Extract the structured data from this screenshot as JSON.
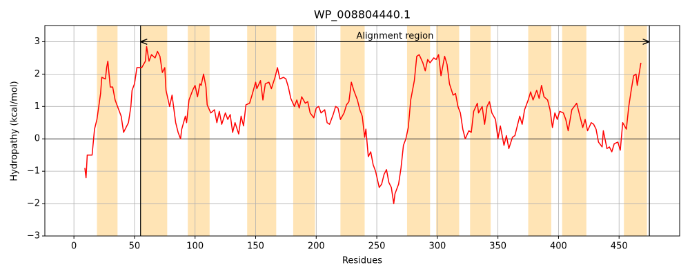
{
  "chart_data": {
    "type": "line",
    "title": "WP_008804440.1",
    "xlabel": "Residues",
    "ylabel": "Hydropathy (kcal/mol)",
    "x": [
      9,
      10,
      11,
      15,
      17,
      19,
      22,
      23,
      26,
      27,
      28,
      30,
      32,
      34,
      36,
      39,
      41,
      43,
      45,
      47,
      48,
      50,
      52,
      55,
      56,
      59,
      60,
      62,
      64,
      67,
      69,
      71,
      73,
      75,
      76,
      79,
      81,
      84,
      86,
      88,
      89,
      92,
      93,
      95,
      98,
      100,
      102,
      104,
      105,
      107,
      109,
      110,
      113,
      116,
      118,
      120,
      122,
      125,
      127,
      129,
      131,
      133,
      136,
      138,
      140,
      142,
      145,
      147,
      150,
      151,
      154,
      156,
      158,
      161,
      163,
      166,
      168,
      170,
      173,
      175,
      177,
      179,
      182,
      184,
      186,
      188,
      191,
      193,
      195,
      198,
      200,
      202,
      204,
      207,
      209,
      211,
      214,
      216,
      218,
      220,
      223,
      225,
      227,
      229,
      231,
      234,
      236,
      238,
      240,
      241,
      243,
      245,
      247,
      249,
      252,
      254,
      256,
      258,
      260,
      262,
      264,
      265,
      268,
      270,
      272,
      274,
      276,
      278,
      281,
      283,
      285,
      288,
      290,
      292,
      294,
      297,
      299,
      301,
      303,
      306,
      308,
      310,
      313,
      315,
      317,
      319,
      321,
      323,
      326,
      328,
      330,
      333,
      334,
      337,
      339,
      341,
      343,
      345,
      348,
      350,
      352,
      355,
      357,
      359,
      362,
      364,
      366,
      368,
      370,
      372,
      375,
      377,
      379,
      382,
      384,
      386,
      388,
      391,
      393,
      395,
      397,
      399,
      401,
      404,
      406,
      408,
      411,
      413,
      415,
      417,
      420,
      422,
      424,
      427,
      429,
      431,
      433,
      436,
      437,
      440,
      442,
      444,
      446,
      449,
      451,
      453,
      456,
      458,
      460,
      462,
      464,
      465,
      468
    ],
    "values": [
      -0.9,
      -1.2,
      -0.5,
      -0.5,
      0.3,
      0.6,
      1.4,
      1.9,
      1.85,
      2.2,
      2.4,
      1.6,
      1.6,
      1.2,
      1.0,
      0.7,
      0.2,
      0.35,
      0.5,
      1.0,
      1.5,
      1.7,
      2.2,
      2.2,
      2.2,
      2.4,
      2.85,
      2.4,
      2.6,
      2.5,
      2.7,
      2.55,
      2.05,
      2.2,
      1.5,
      1.0,
      1.35,
      0.5,
      0.2,
      0.0,
      0.3,
      0.7,
      0.5,
      1.2,
      1.5,
      1.65,
      1.3,
      1.7,
      1.65,
      2.0,
      1.6,
      1.05,
      0.8,
      0.9,
      0.5,
      0.85,
      0.45,
      0.8,
      0.6,
      0.75,
      0.2,
      0.5,
      0.15,
      0.7,
      0.4,
      1.05,
      1.1,
      1.35,
      1.75,
      1.55,
      1.8,
      1.2,
      1.7,
      1.75,
      1.55,
      1.9,
      2.2,
      1.85,
      1.9,
      1.85,
      1.6,
      1.25,
      1.0,
      1.2,
      0.95,
      1.3,
      1.1,
      1.15,
      0.8,
      0.65,
      0.95,
      1.0,
      0.8,
      0.9,
      0.5,
      0.45,
      0.75,
      1.0,
      0.95,
      0.6,
      0.8,
      1.05,
      1.15,
      1.75,
      1.5,
      1.2,
      0.9,
      0.7,
      0.05,
      0.3,
      -0.55,
      -0.4,
      -0.8,
      -1.0,
      -1.5,
      -1.4,
      -1.1,
      -0.95,
      -1.35,
      -1.5,
      -2.0,
      -1.7,
      -1.4,
      -0.9,
      -0.2,
      0.0,
      0.35,
      1.2,
      1.8,
      2.55,
      2.6,
      2.35,
      2.1,
      2.45,
      2.35,
      2.5,
      2.45,
      2.6,
      1.95,
      2.55,
      2.3,
      1.7,
      1.35,
      1.4,
      1.0,
      0.8,
      0.3,
      0.0,
      0.25,
      0.2,
      0.85,
      1.1,
      0.8,
      1.0,
      0.45,
      1.0,
      1.15,
      0.8,
      0.6,
      0.0,
      0.4,
      -0.2,
      0.1,
      -0.3,
      0.05,
      0.1,
      0.4,
      0.7,
      0.45,
      0.9,
      1.2,
      1.45,
      1.2,
      1.5,
      1.25,
      1.65,
      1.3,
      1.2,
      0.9,
      0.35,
      0.8,
      0.6,
      0.85,
      0.8,
      0.6,
      0.25,
      0.9,
      1.0,
      1.1,
      0.8,
      0.35,
      0.6,
      0.25,
      0.5,
      0.45,
      0.3,
      -0.1,
      -0.25,
      0.25,
      -0.3,
      -0.25,
      -0.4,
      -0.15,
      -0.1,
      -0.35,
      0.5,
      0.3,
      1.0,
      1.5,
      1.95,
      2.0,
      1.65,
      2.35
    ],
    "color": "#ff0000",
    "spans": [
      [
        19,
        36
      ],
      [
        55,
        77
      ],
      [
        94,
        112
      ],
      [
        143,
        167
      ],
      [
        181,
        199
      ],
      [
        220,
        240
      ],
      [
        275,
        294
      ],
      [
        299,
        318
      ],
      [
        327,
        344
      ],
      [
        375,
        394
      ],
      [
        403,
        423
      ],
      [
        454,
        473
      ]
    ],
    "span_color": "#ffe4b5",
    "vlines": [
      55,
      475
    ],
    "hline": 0,
    "annotation": {
      "text": "Alignment region",
      "x": [
        55,
        475
      ],
      "y": 3
    },
    "xlim": [
      -24,
      500
    ],
    "ylim": [
      -3,
      3.5
    ],
    "xticks": [
      0,
      50,
      100,
      150,
      200,
      250,
      300,
      350,
      400,
      450
    ],
    "yticks": [
      {
        "value": -3,
        "label": "−3"
      },
      {
        "value": -2,
        "label": "−2"
      },
      {
        "value": -1,
        "label": "−1"
      },
      0,
      1,
      2,
      3
    ],
    "grid": true
  }
}
